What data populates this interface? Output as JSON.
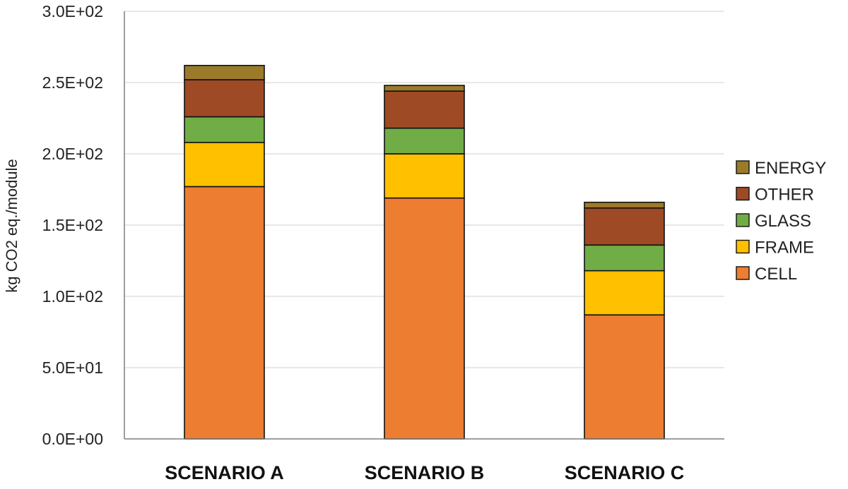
{
  "chart_data": {
    "type": "bar",
    "stacked": true,
    "title": "",
    "xlabel": "",
    "ylabel": "kg CO2 eq./module",
    "ylim": [
      0,
      300
    ],
    "yticks": [
      0,
      50,
      100,
      150,
      200,
      250,
      300
    ],
    "ytick_labels": [
      "0.0E+00",
      "5.0E+01",
      "1.0E+02",
      "1.5E+02",
      "2.0E+02",
      "2.5E+02",
      "3.0E+02"
    ],
    "grid": "horizontal",
    "legend_position": "right",
    "categories": [
      "SCENARIO A",
      "SCENARIO B",
      "SCENARIO C"
    ],
    "series": [
      {
        "name": "CELL",
        "color": "#ED7D31",
        "values": [
          177,
          169,
          87
        ]
      },
      {
        "name": "FRAME",
        "color": "#FFC000",
        "values": [
          31,
          31,
          31
        ]
      },
      {
        "name": "GLASS",
        "color": "#70AD47",
        "values": [
          18,
          18,
          18
        ]
      },
      {
        "name": "OTHER",
        "color": "#9E4A24",
        "values": [
          26,
          26,
          26
        ]
      },
      {
        "name": "ENERGY",
        "color": "#9B7A2A",
        "values": [
          10,
          4,
          4
        ]
      }
    ]
  }
}
